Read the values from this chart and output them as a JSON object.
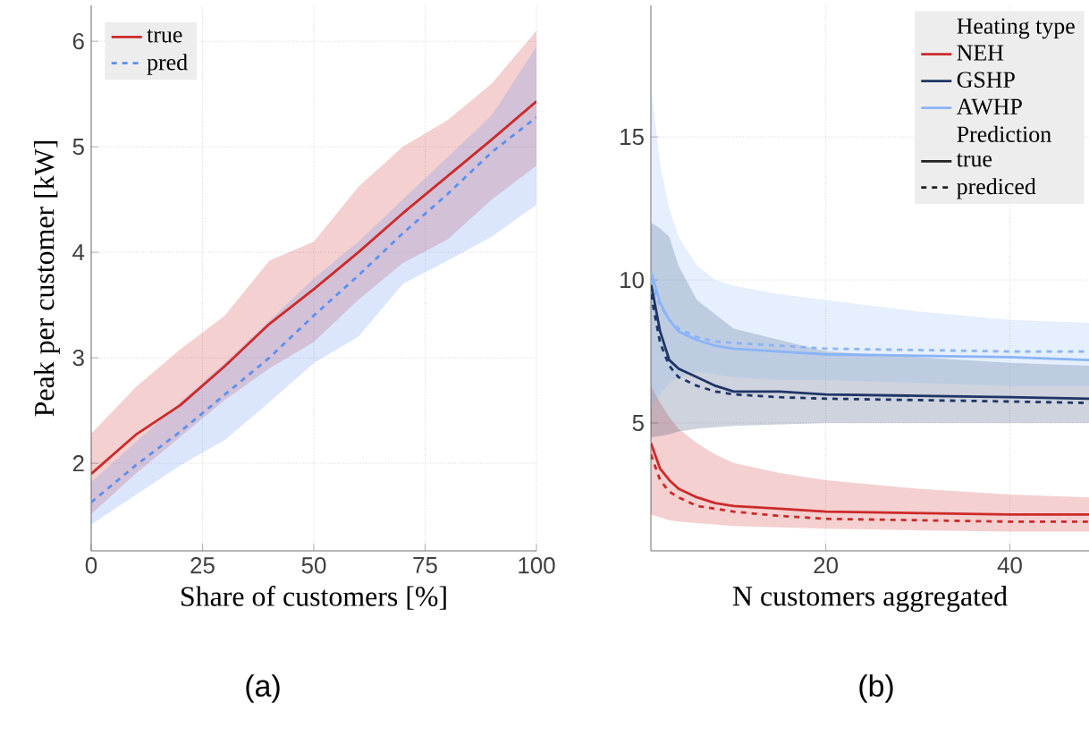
{
  "chart_data": [
    {
      "type": "line",
      "xlabel": "Share of customers [%]",
      "ylabel": "Peak per customer [kW]",
      "xlim": [
        0,
        100
      ],
      "ylim": [
        1.17,
        6.34
      ],
      "xticks": [
        0,
        25,
        50,
        75,
        100
      ],
      "yticks": [
        2,
        3,
        4,
        5,
        6
      ],
      "grid": true,
      "legend": "top left",
      "annotations": [
        "(a)"
      ],
      "x": [
        0,
        10,
        20,
        30,
        40,
        50,
        60,
        70,
        80,
        90,
        100
      ],
      "series": [
        {
          "name": "true",
          "color": "#cc2a2a",
          "line_style": "solid",
          "values": [
            1.9,
            2.27,
            2.55,
            2.92,
            3.32,
            3.65,
            4.0,
            4.37,
            4.72,
            5.07,
            5.43
          ],
          "lower": [
            1.52,
            1.9,
            2.25,
            2.6,
            2.9,
            3.15,
            3.55,
            3.9,
            4.12,
            4.5,
            4.82
          ],
          "upper": [
            2.28,
            2.72,
            3.08,
            3.4,
            3.92,
            4.1,
            4.62,
            5.0,
            5.25,
            5.6,
            6.1
          ]
        },
        {
          "name": "pred",
          "color": "#5b8ff0",
          "line_style": "dashed",
          "values": [
            1.63,
            1.98,
            2.3,
            2.65,
            3.0,
            3.4,
            3.78,
            4.18,
            4.55,
            4.95,
            5.28
          ],
          "lower": [
            1.42,
            1.7,
            1.98,
            2.22,
            2.58,
            2.95,
            3.2,
            3.7,
            3.92,
            4.15,
            4.45
          ],
          "upper": [
            1.82,
            2.2,
            2.58,
            2.95,
            3.35,
            3.75,
            4.1,
            4.5,
            4.9,
            5.3,
            5.95
          ]
        }
      ]
    },
    {
      "type": "line",
      "xlabel": "N customers aggregated",
      "xlim": [
        1,
        48.6
      ],
      "ylim": [
        0.53,
        19.6
      ],
      "xticks": [
        20,
        40
      ],
      "yticks": [
        5,
        10,
        15
      ],
      "grid": true,
      "legend": "top right",
      "legend_title": "Heating type",
      "annotations": [
        "(b)",
        "Prediction"
      ],
      "x": [
        1,
        2,
        3,
        4,
        6,
        8,
        10,
        15,
        20,
        30,
        40,
        48.6
      ],
      "series": [
        {
          "name": "NEH",
          "color": "#cc2a2a",
          "line_style": "solid",
          "values": [
            4.3,
            3.4,
            3.0,
            2.7,
            2.4,
            2.2,
            2.1,
            2.0,
            1.9,
            1.85,
            1.8,
            1.8
          ],
          "lower": [
            1.8,
            1.7,
            1.6,
            1.55,
            1.5,
            1.45,
            1.4,
            1.35,
            1.3,
            1.25,
            1.2,
            1.2
          ],
          "upper": [
            6.3,
            5.7,
            5.2,
            4.8,
            4.3,
            3.9,
            3.6,
            3.25,
            3.0,
            2.7,
            2.5,
            2.4
          ]
        },
        {
          "color": "#cc2a2a",
          "line_style": "dashed",
          "values": [
            3.9,
            3.0,
            2.6,
            2.4,
            2.1,
            2.0,
            1.9,
            1.75,
            1.65,
            1.6,
            1.55,
            1.55
          ]
        },
        {
          "name": "GSHP",
          "color": "#1f3566",
          "line_style": "solid",
          "values": [
            9.9,
            8.2,
            7.2,
            6.9,
            6.6,
            6.3,
            6.1,
            6.1,
            6.0,
            5.95,
            5.9,
            5.85
          ],
          "lower": [
            4.5,
            4.55,
            4.6,
            4.7,
            4.8,
            4.85,
            4.9,
            4.95,
            5.0,
            5.0,
            5.0,
            5.0
          ],
          "upper": [
            12.0,
            11.8,
            11.5,
            10.5,
            9.3,
            8.8,
            8.3,
            7.9,
            7.5,
            7.3,
            7.1,
            7.0
          ]
        },
        {
          "color": "#1f3566",
          "line_style": "dashed",
          "values": [
            9.5,
            7.8,
            7.0,
            6.6,
            6.3,
            6.1,
            6.0,
            5.9,
            5.85,
            5.8,
            5.75,
            5.7
          ]
        },
        {
          "name": "AWHP",
          "color": "#8ab4f8",
          "line_style": "solid",
          "values": [
            10.3,
            9.2,
            8.6,
            8.2,
            7.9,
            7.7,
            7.6,
            7.5,
            7.4,
            7.35,
            7.3,
            7.2
          ],
          "lower": [
            5.5,
            6.0,
            6.4,
            6.6,
            6.8,
            6.7,
            6.6,
            6.5,
            6.5,
            6.4,
            6.3,
            6.3
          ],
          "upper": [
            16.8,
            14.0,
            12.5,
            11.5,
            10.5,
            10.0,
            9.8,
            9.5,
            9.3,
            8.9,
            8.6,
            8.5
          ]
        },
        {
          "color": "#8ab4f8",
          "line_style": "dashed",
          "values": [
            10.0,
            9.1,
            8.6,
            8.3,
            8.0,
            7.85,
            7.8,
            7.7,
            7.6,
            7.55,
            7.5,
            7.5
          ]
        },
        {
          "name": "true",
          "color": "#222222",
          "line_style": "solid",
          "values": [
            null,
            null,
            null,
            null,
            null,
            null,
            null,
            null,
            null,
            null,
            null,
            null
          ]
        },
        {
          "name": "prediced",
          "color": "#222222",
          "line_style": "dashed",
          "values": [
            null,
            null,
            null,
            null,
            null,
            null,
            null,
            null,
            null,
            null,
            null,
            null
          ]
        }
      ]
    }
  ]
}
